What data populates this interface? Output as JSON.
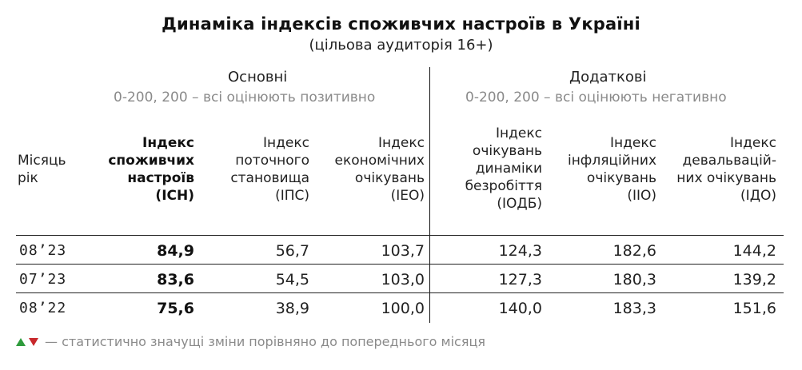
{
  "title": "Динаміка індексів споживчих настроїв в Україні",
  "subtitle": "(цільова аудиторія 16+)",
  "groups": {
    "main": {
      "title": "Основні",
      "range": "0-200, 200 – всі оцінюють позитивно"
    },
    "extra": {
      "title": "Додаткові",
      "range": "0-200, 200 – всі оцінюють негативно"
    }
  },
  "columns": [
    {
      "lines": [
        "Місяць",
        "рік"
      ]
    },
    {
      "lines": [
        "Індекс",
        "споживчих",
        "настроїв",
        "(ІСН)"
      ]
    },
    {
      "lines": [
        "Індекс",
        "поточного",
        "становища",
        "(ІПС)"
      ]
    },
    {
      "lines": [
        "Індекс",
        "економічних",
        "очікувань",
        "(ІЕО)"
      ]
    },
    {
      "lines": [
        "Індекс",
        "очікувань",
        "динаміки",
        "безробіття",
        "(ІОДБ)"
      ]
    },
    {
      "lines": [
        "Індекс",
        "інфляційних",
        "очікувань",
        "(ІІО)"
      ]
    },
    {
      "lines": [
        "Індекс",
        "девальвацій-",
        "них очікувань",
        "(ІДО)"
      ]
    }
  ],
  "rows": [
    {
      "month": "08’23",
      "isn": "84,9",
      "ips": "56,7",
      "ieo": "103,7",
      "iodb": "124,3",
      "iio": "182,6",
      "ido": "144,2"
    },
    {
      "month": "07’23",
      "isn": "83,6",
      "ips": "54,5",
      "ieo": "103,0",
      "iodb": "127,3",
      "iio": "180,3",
      "ido": "139,2"
    },
    {
      "month": "08’22",
      "isn": "75,6",
      "ips": "38,9",
      "ieo": "100,0",
      "iodb": "140,0",
      "iio": "183,3",
      "ido": "151,6"
    }
  ],
  "legend": {
    "text": "— статистично значущі зміни порівняно до попереднього місяця",
    "up_color": "#2e9b3c",
    "down_color": "#c8282b"
  }
}
